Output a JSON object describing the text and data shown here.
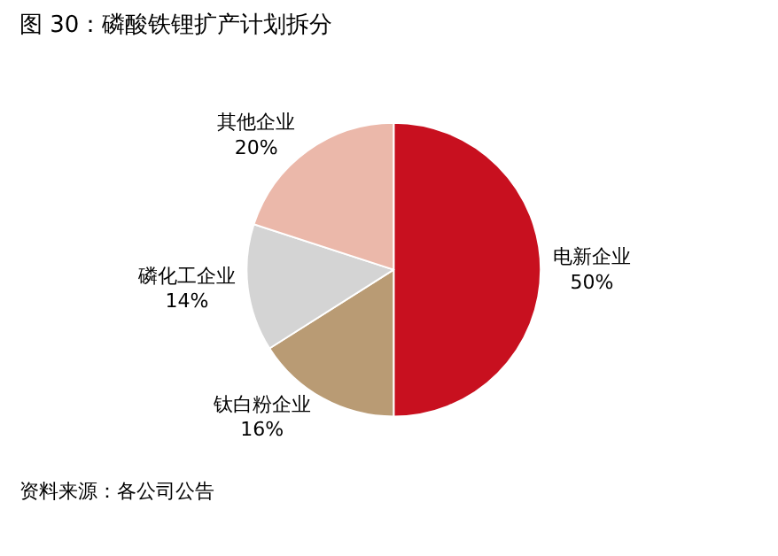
{
  "chart_data": {
    "type": "pie",
    "title": "图 30：磷酸铁锂扩产计划拆分",
    "categories": [
      "电新企业",
      "钛白粉企业",
      "磷化工企业",
      "其他企业"
    ],
    "values": [
      50,
      16,
      14,
      20
    ],
    "value_labels": [
      "50%",
      "16%",
      "14%",
      "20%"
    ],
    "colors": [
      "#c8101f",
      "#b99b74",
      "#d4d4d4",
      "#ebb8aa"
    ],
    "legend": false,
    "annotations": [
      "资料来源：各公司公告"
    ]
  }
}
